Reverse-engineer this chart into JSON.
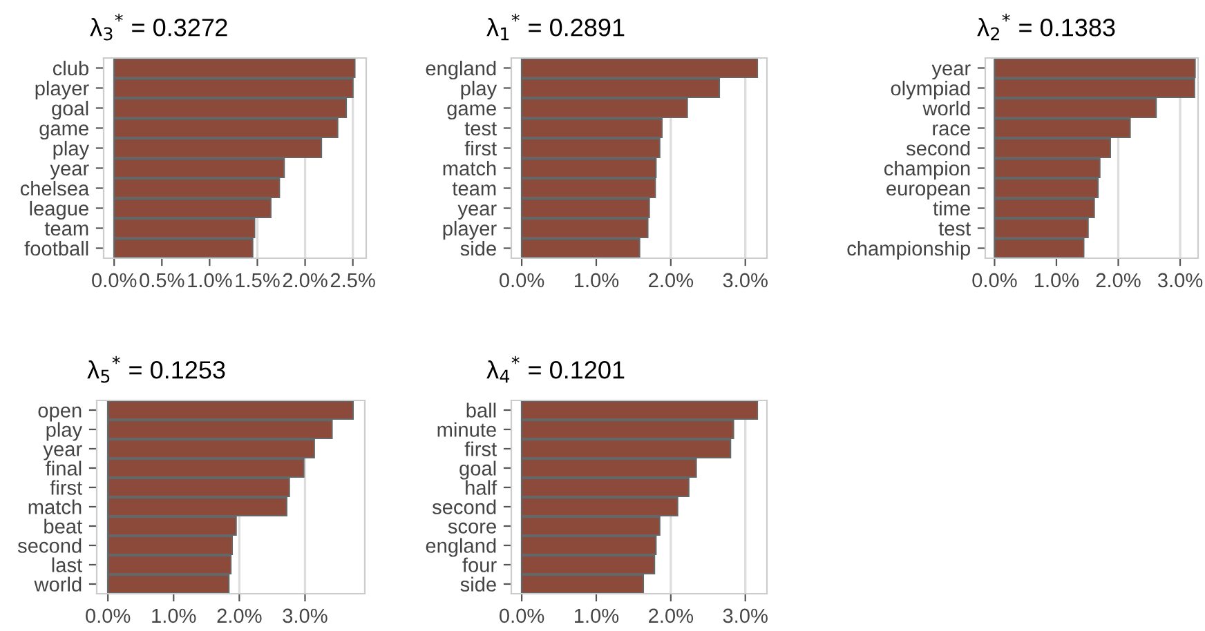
{
  "chart_data": [
    {
      "type": "bar",
      "orientation": "horizontal",
      "title": "λ$_{3}$$^{*}$ = 0.3272",
      "categories": [
        "club",
        "player",
        "goal",
        "game",
        "play",
        "year",
        "chelsea",
        "league",
        "team",
        "football"
      ],
      "values": [
        2.52,
        2.5,
        2.43,
        2.34,
        2.17,
        1.78,
        1.73,
        1.64,
        1.47,
        1.45
      ],
      "color": "#8b4a3a",
      "xlim": [
        -0.11,
        2.64
      ],
      "xticks": [
        {
          "value": 0,
          "label": "0.0%"
        },
        {
          "value": 0.5,
          "label": "0.5%"
        },
        {
          "value": 1,
          "label": "1.0%"
        },
        {
          "value": 1.5,
          "label": "1.5%"
        },
        {
          "value": 2,
          "label": "2.0%"
        },
        {
          "value": 2.5,
          "label": "2.5%"
        }
      ],
      "grid": "x"
    },
    {
      "type": "bar",
      "orientation": "horizontal",
      "title": "λ$_{1}$$^{*}$ = 0.2891",
      "categories": [
        "england",
        "play",
        "game",
        "test",
        "first",
        "match",
        "team",
        "year",
        "player",
        "side"
      ],
      "values": [
        3.16,
        2.65,
        2.22,
        1.88,
        1.85,
        1.8,
        1.79,
        1.71,
        1.69,
        1.58
      ],
      "color": "#8b4a3a",
      "xlim": [
        -0.14,
        3.29
      ],
      "xticks": [
        {
          "value": 0,
          "label": "0.0%"
        },
        {
          "value": 1,
          "label": "1.0%"
        },
        {
          "value": 2,
          "label": "2.0%"
        },
        {
          "value": 3,
          "label": "3.0%"
        }
      ],
      "grid": "x"
    },
    {
      "type": "bar",
      "orientation": "horizontal",
      "title": "λ$_{2}$$^{*}$ = 0.1383",
      "categories": [
        "year",
        "olympiad",
        "world",
        "race",
        "second",
        "champion",
        "european",
        "time",
        "test",
        "championship"
      ],
      "values": [
        3.24,
        3.23,
        2.61,
        2.19,
        1.87,
        1.7,
        1.67,
        1.61,
        1.51,
        1.44
      ],
      "color": "#8b4a3a",
      "xlim": [
        -0.15,
        3.29
      ],
      "xticks": [
        {
          "value": 0,
          "label": "0.0%"
        },
        {
          "value": 1,
          "label": "1.0%"
        },
        {
          "value": 2,
          "label": "2.0%"
        },
        {
          "value": 3,
          "label": "3.0%"
        }
      ],
      "grid": "x"
    },
    {
      "type": "bar",
      "orientation": "horizontal",
      "title": "λ$_{5}$$^{*}$ = 0.1253",
      "categories": [
        "open",
        "play",
        "year",
        "final",
        "first",
        "match",
        "beat",
        "second",
        "last",
        "world"
      ],
      "values": [
        3.73,
        3.41,
        3.14,
        2.98,
        2.76,
        2.72,
        1.95,
        1.89,
        1.87,
        1.84
      ],
      "color": "#8b4a3a",
      "xlim": [
        -0.17,
        3.91
      ],
      "xticks": [
        {
          "value": 0,
          "label": "0.0%"
        },
        {
          "value": 1,
          "label": "1.0%"
        },
        {
          "value": 2,
          "label": "2.0%"
        },
        {
          "value": 3,
          "label": "3.0%"
        }
      ],
      "grid": "x"
    },
    {
      "type": "bar",
      "orientation": "horizontal",
      "title": "λ$_{4}$$^{*}$ = 0.1201",
      "categories": [
        "ball",
        "minute",
        "first",
        "goal",
        "half",
        "second",
        "score",
        "england",
        "four",
        "side"
      ],
      "values": [
        3.16,
        2.84,
        2.8,
        2.34,
        2.24,
        2.09,
        1.85,
        1.8,
        1.78,
        1.63
      ],
      "color": "#8b4a3a",
      "xlim": [
        -0.14,
        3.29
      ],
      "xticks": [
        {
          "value": 0,
          "label": "0.0%"
        },
        {
          "value": 1,
          "label": "1.0%"
        },
        {
          "value": 2,
          "label": "2.0%"
        },
        {
          "value": 3,
          "label": "3.0%"
        }
      ],
      "grid": "x"
    }
  ]
}
